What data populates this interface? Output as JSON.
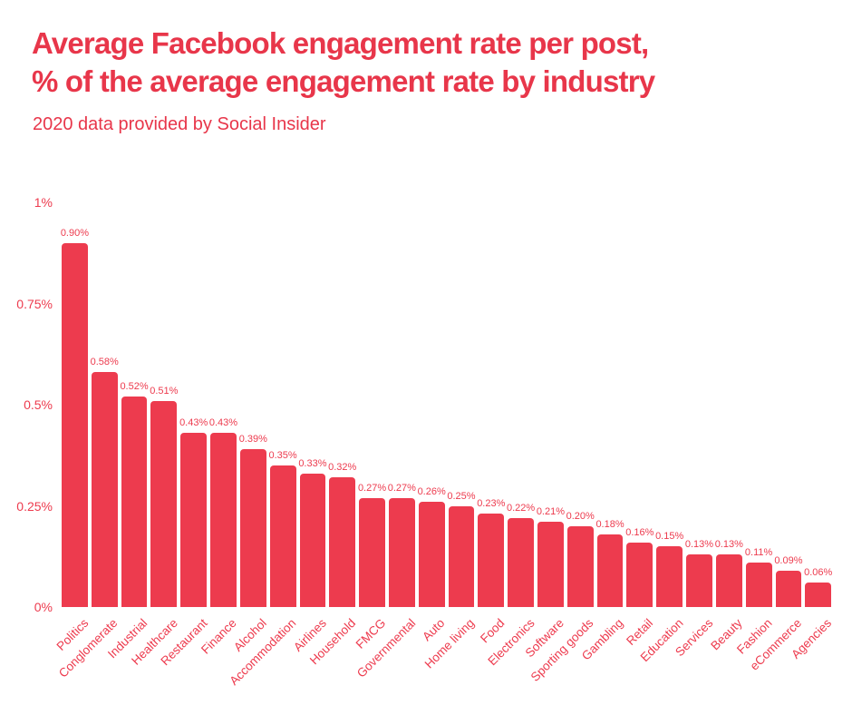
{
  "header": {
    "title_line1": "Average Facebook engagement rate per post,",
    "title_line2": "% of the average engagement rate by industry",
    "subtitle": "2020 data provided by Social Insider"
  },
  "colors": {
    "title": "#e8364a",
    "accent": "#ed3b4e",
    "background": "#ffffff"
  },
  "chart_data": {
    "type": "bar",
    "title": "Average Facebook engagement rate per post, % of the average engagement rate by industry",
    "subtitle": "2020 data provided by Social Insider",
    "xlabel": "",
    "ylabel": "",
    "ylim": [
      0,
      1
    ],
    "grid": false,
    "legend": false,
    "bar_color": "#ed3b4e",
    "yticks": [
      {
        "value": 1.0,
        "label": "1%"
      },
      {
        "value": 0.75,
        "label": "0.75%"
      },
      {
        "value": 0.5,
        "label": "0.5%"
      },
      {
        "value": 0.25,
        "label": "0.25%"
      },
      {
        "value": 0.0,
        "label": "0%"
      }
    ],
    "categories": [
      "Politics",
      "Conglomerate",
      "Industrial",
      "Healthcare",
      "Restaurant",
      "Finance",
      "Alcohol",
      "Accommodation",
      "Airlines",
      "Household",
      "FMCG",
      "Governmental",
      "Auto",
      "Home living",
      "Food",
      "Electronics",
      "Software",
      "Sporting goods",
      "Gambling",
      "Retail",
      "Education",
      "Services",
      "Beauty",
      "Fashion",
      "eCommerce",
      "Agencies"
    ],
    "values": [
      0.9,
      0.58,
      0.52,
      0.51,
      0.43,
      0.43,
      0.39,
      0.35,
      0.33,
      0.32,
      0.27,
      0.27,
      0.26,
      0.25,
      0.23,
      0.22,
      0.21,
      0.2,
      0.18,
      0.16,
      0.15,
      0.13,
      0.13,
      0.11,
      0.09,
      0.06
    ],
    "value_labels": [
      "0.90%",
      "0.58%",
      "0.52%",
      "0.51%",
      "0.43%",
      "0.43%",
      "0.39%",
      "0.35%",
      "0.33%",
      "0.32%",
      "0.27%",
      "0.27%",
      "0.26%",
      "0.25%",
      "0.23%",
      "0.22%",
      "0.21%",
      "0.20%",
      "0.18%",
      "0.16%",
      "0.15%",
      "0.13%",
      "0.13%",
      "0.11%",
      "0.09%",
      "0.06%"
    ]
  }
}
